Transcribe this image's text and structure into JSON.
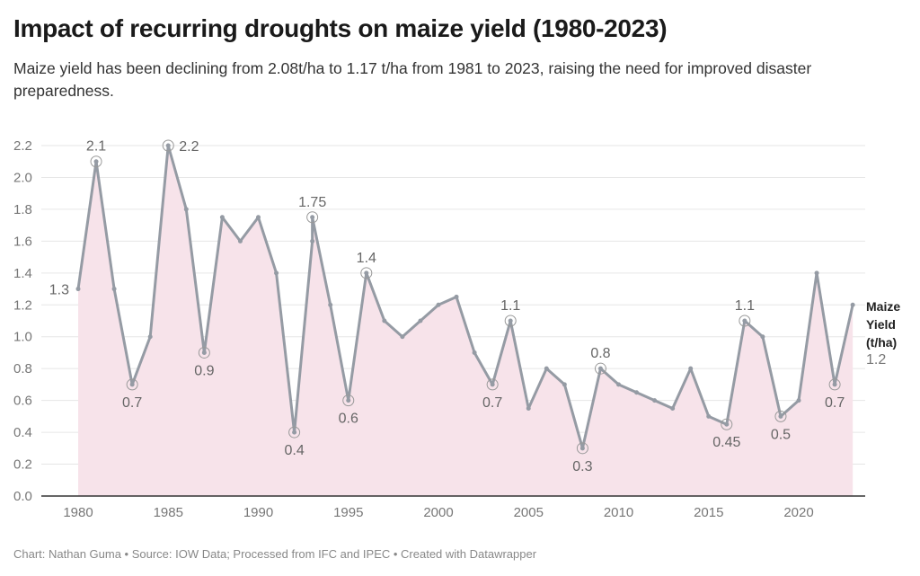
{
  "title": "Impact of recurring droughts on maize yield (1980-2023)",
  "subtitle": "Maize yield has been declining from 2.08t/ha to 1.17 t/ha from 1981 to 2023, raising the need for improved disaster preparedness.",
  "footer": "Chart: Nathan Guma  • Source: IOW Data; Processed from IFC and IPEC • Created with Datawrapper",
  "chart_data": {
    "type": "area",
    "title": "Impact of recurring droughts on maize yield (1980-2023)",
    "xlim": [
      1980,
      2023
    ],
    "ylim": [
      0,
      2.2
    ],
    "grid": true,
    "x_ticks": [
      "1980",
      "1985",
      "1990",
      "1995",
      "2000",
      "2005",
      "2010",
      "2015",
      "2020"
    ],
    "y_ticks": [
      "0.0",
      "0.2",
      "0.4",
      "0.6",
      "0.8",
      "1.0",
      "1.2",
      "1.4",
      "1.6",
      "1.8",
      "2.0",
      "2.2"
    ],
    "colors": {
      "line": "#959ba4",
      "fill": "#f7e3ea",
      "grid": "#e6e6e6",
      "text": "#666666"
    },
    "series": [
      {
        "name": "Maize Yield (t/ha)",
        "end_label": "1.2",
        "x": [
          1980,
          1981,
          1982,
          1983,
          1984,
          1985,
          1986,
          1987,
          1988,
          1989,
          1990,
          1991,
          1992,
          1993,
          1993,
          1994,
          1995,
          1996,
          1997,
          1998,
          1999,
          2000,
          2001,
          2002,
          2003,
          2004,
          2005,
          2006,
          2007,
          2008,
          2009,
          2010,
          2011,
          2012,
          2013,
          2014,
          2015,
          2016,
          2017,
          2018,
          2019,
          2020,
          2021,
          2022,
          2023
        ],
        "values": [
          1.3,
          2.1,
          1.3,
          0.7,
          1.0,
          2.2,
          1.8,
          0.9,
          1.75,
          1.6,
          1.75,
          1.4,
          0.4,
          1.6,
          1.75,
          1.2,
          0.6,
          1.4,
          1.1,
          1.0,
          1.1,
          1.2,
          1.25,
          0.9,
          0.7,
          1.1,
          0.55,
          0.8,
          0.7,
          0.3,
          0.8,
          0.7,
          0.65,
          0.6,
          0.55,
          0.8,
          0.5,
          0.45,
          1.1,
          1.0,
          0.5,
          0.6,
          1.4,
          0.7,
          1.2
        ]
      }
    ],
    "annotations": [
      {
        "x": 1980,
        "y": 1.3,
        "label": "1.3",
        "pos": "left"
      },
      {
        "x": 1981,
        "y": 2.1,
        "label": "2.1",
        "pos": "above"
      },
      {
        "x": 1983,
        "y": 0.7,
        "label": "0.7",
        "pos": "below"
      },
      {
        "x": 1985,
        "y": 2.2,
        "label": "2.2",
        "pos": "right"
      },
      {
        "x": 1987,
        "y": 0.9,
        "label": "0.9",
        "pos": "below"
      },
      {
        "x": 1992,
        "y": 0.4,
        "label": "0.4",
        "pos": "below"
      },
      {
        "x": 1993,
        "y": 1.75,
        "label": "1.75",
        "pos": "above"
      },
      {
        "x": 1995,
        "y": 0.6,
        "label": "0.6",
        "pos": "below"
      },
      {
        "x": 1996,
        "y": 1.4,
        "label": "1.4",
        "pos": "above"
      },
      {
        "x": 2003,
        "y": 0.7,
        "label": "0.7",
        "pos": "below"
      },
      {
        "x": 2004,
        "y": 1.1,
        "label": "1.1",
        "pos": "above"
      },
      {
        "x": 2008,
        "y": 0.3,
        "label": "0.3",
        "pos": "below"
      },
      {
        "x": 2009,
        "y": 0.8,
        "label": "0.8",
        "pos": "above"
      },
      {
        "x": 2016,
        "y": 0.45,
        "label": "0.45",
        "pos": "below"
      },
      {
        "x": 2017,
        "y": 1.1,
        "label": "1.1",
        "pos": "above"
      },
      {
        "x": 2019,
        "y": 0.5,
        "label": "0.5",
        "pos": "below"
      },
      {
        "x": 2022,
        "y": 0.7,
        "label": "0.7",
        "pos": "below"
      }
    ]
  }
}
